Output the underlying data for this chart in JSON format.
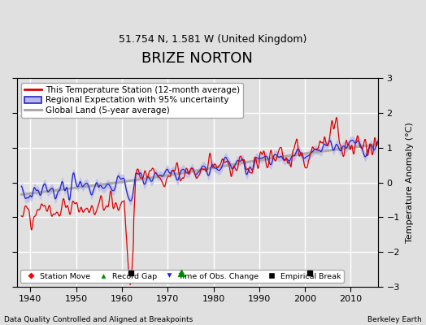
{
  "title": "BRIZE NORTON",
  "subtitle": "51.754 N, 1.581 W (United Kingdom)",
  "ylabel": "Temperature Anomaly (°C)",
  "xlabel_bottom_left": "Data Quality Controlled and Aligned at Breakpoints",
  "xlabel_bottom_right": "Berkeley Earth",
  "xlim": [
    1937,
    2016
  ],
  "ylim": [
    -3,
    3
  ],
  "yticks": [
    -3,
    -2,
    -1,
    0,
    1,
    2,
    3
  ],
  "xticks": [
    1940,
    1950,
    1960,
    1970,
    1980,
    1990,
    2000,
    2010
  ],
  "bg_color": "#e0e0e0",
  "plot_bg_color": "#e0e0e0",
  "grid_color": "#ffffff",
  "station_line_color": "#dd0000",
  "regional_line_color": "#2222cc",
  "regional_fill_color": "#b8b8ee",
  "global_line_color": "#aaaaaa",
  "legend_box_color": "#ffffff",
  "empirical_break_years": [
    1962,
    2001
  ],
  "record_gap_years": [
    1973
  ],
  "title_fontsize": 13,
  "subtitle_fontsize": 9,
  "label_fontsize": 8,
  "tick_fontsize": 8,
  "legend_fontsize": 7.5
}
